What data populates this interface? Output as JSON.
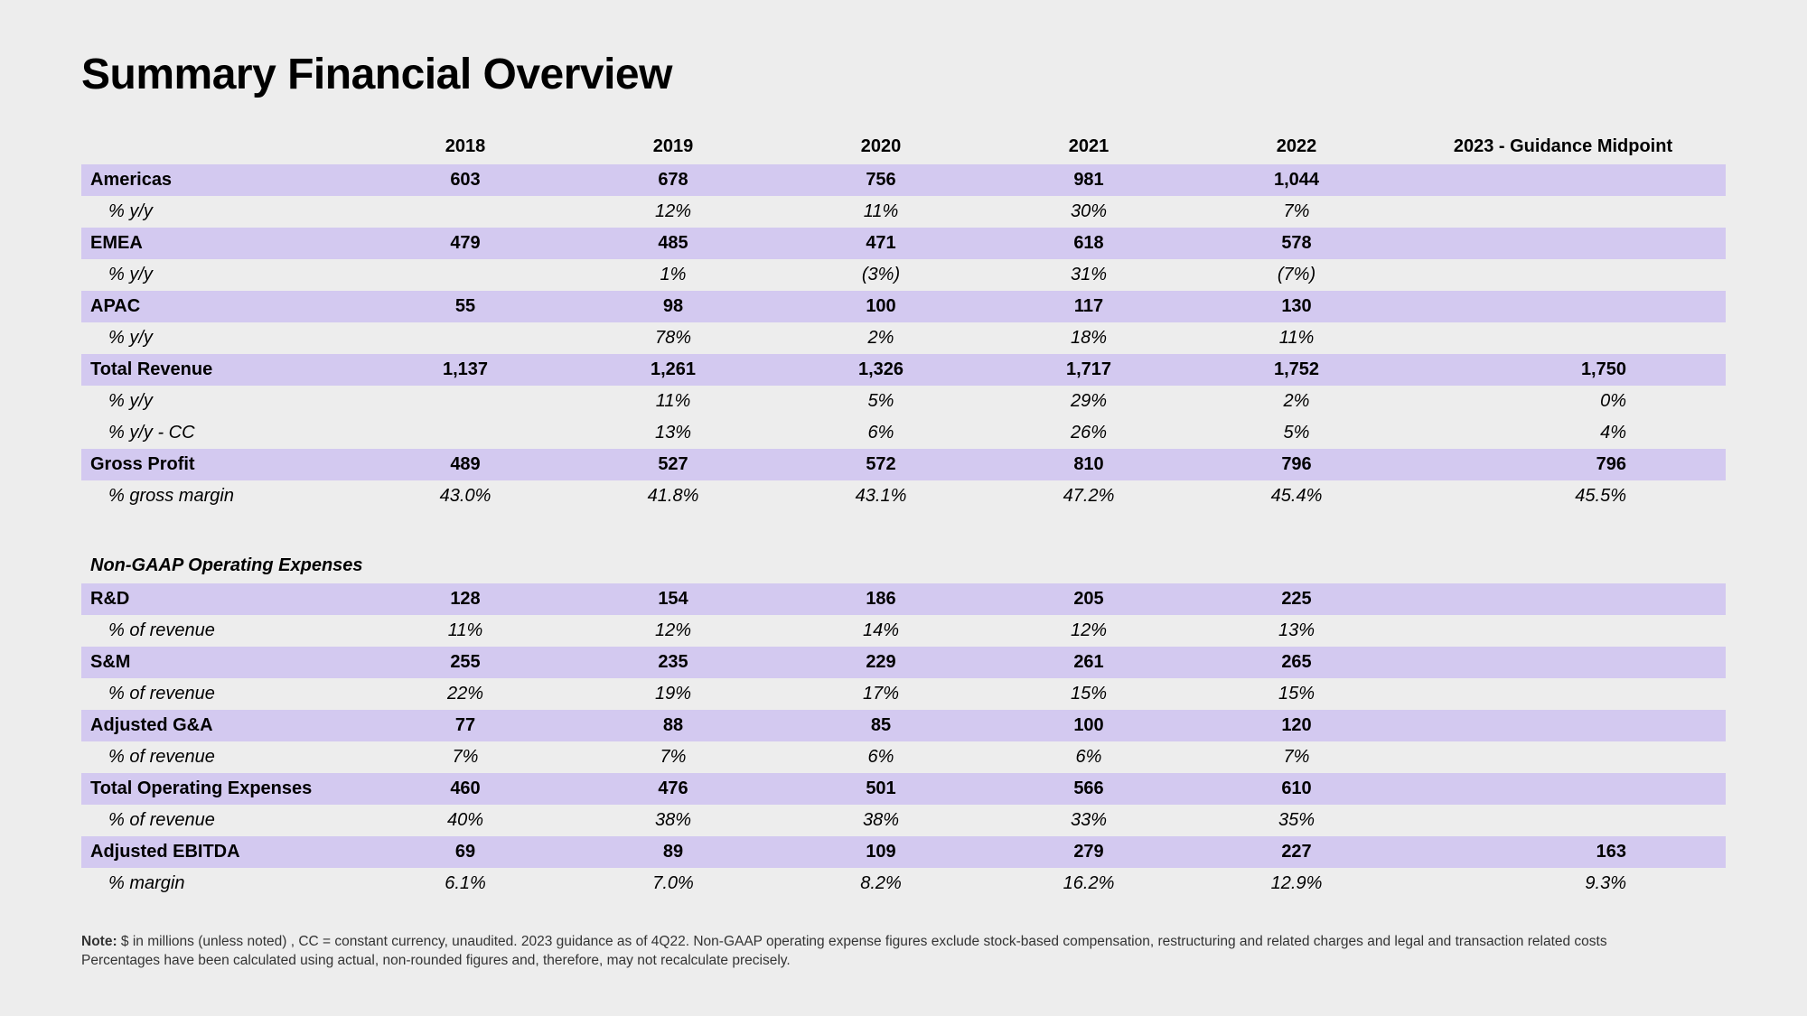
{
  "title": "Summary Financial Overview",
  "columns": [
    "2018",
    "2019",
    "2020",
    "2021",
    "2022",
    "2023 - Guidance Midpoint"
  ],
  "colors": {
    "page_bg": "#ededed",
    "row_main_bg": "#d3c9f0",
    "row_sub_bg": "#ededed",
    "text": "#000000"
  },
  "typography": {
    "title_fontsize": 48,
    "cell_fontsize": 20,
    "footnote_fontsize": 15.5
  },
  "blocks": [
    {
      "type": "data",
      "rows": [
        {
          "kind": "main",
          "label": "Americas",
          "values": [
            "603",
            "678",
            "756",
            "981",
            "1,044",
            ""
          ]
        },
        {
          "kind": "sub",
          "label": "% y/y",
          "values": [
            "",
            "12%",
            "11%",
            "30%",
            "7%",
            ""
          ]
        },
        {
          "kind": "main",
          "label": "EMEA",
          "values": [
            "479",
            "485",
            "471",
            "618",
            "578",
            ""
          ]
        },
        {
          "kind": "sub",
          "label": "% y/y",
          "values": [
            "",
            "1%",
            "(3%)",
            "31%",
            "(7%)",
            ""
          ]
        },
        {
          "kind": "main",
          "label": "APAC",
          "values": [
            "55",
            "98",
            "100",
            "117",
            "130",
            ""
          ]
        },
        {
          "kind": "sub",
          "label": "% y/y",
          "values": [
            "",
            "78%",
            "2%",
            "18%",
            "11%",
            ""
          ]
        },
        {
          "kind": "main",
          "label": "Total Revenue",
          "values": [
            "1,137",
            "1,261",
            "1,326",
            "1,717",
            "1,752",
            "1,750"
          ]
        },
        {
          "kind": "sub",
          "label": "% y/y",
          "values": [
            "",
            "11%",
            "5%",
            "29%",
            "2%",
            "0%"
          ]
        },
        {
          "kind": "sub",
          "label": "% y/y - CC",
          "values": [
            "",
            "13%",
            "6%",
            "26%",
            "5%",
            "4%"
          ]
        },
        {
          "kind": "main",
          "label": "Gross Profit",
          "values": [
            "489",
            "527",
            "572",
            "810",
            "796",
            "796"
          ]
        },
        {
          "kind": "sub",
          "label": "% gross margin",
          "values": [
            "43.0%",
            "41.8%",
            "43.1%",
            "47.2%",
            "45.4%",
            "45.5%"
          ]
        }
      ]
    },
    {
      "type": "section",
      "heading": "Non-GAAP Operating Expenses"
    },
    {
      "type": "data",
      "rows": [
        {
          "kind": "main",
          "label": "R&D",
          "values": [
            "128",
            "154",
            "186",
            "205",
            "225",
            ""
          ]
        },
        {
          "kind": "sub",
          "label": "% of revenue",
          "values": [
            "11%",
            "12%",
            "14%",
            "12%",
            "13%",
            ""
          ]
        },
        {
          "kind": "main",
          "label": "S&M",
          "values": [
            "255",
            "235",
            "229",
            "261",
            "265",
            ""
          ]
        },
        {
          "kind": "sub",
          "label": "% of revenue",
          "values": [
            "22%",
            "19%",
            "17%",
            "15%",
            "15%",
            ""
          ]
        },
        {
          "kind": "main",
          "label": "Adjusted G&A",
          "values": [
            "77",
            "88",
            "85",
            "100",
            "120",
            ""
          ]
        },
        {
          "kind": "sub",
          "label": "% of revenue",
          "values": [
            "7%",
            "7%",
            "6%",
            "6%",
            "7%",
            ""
          ]
        },
        {
          "kind": "main",
          "label": "Total Operating Expenses",
          "values": [
            "460",
            "476",
            "501",
            "566",
            "610",
            ""
          ]
        },
        {
          "kind": "sub",
          "label": "% of revenue",
          "values": [
            "40%",
            "38%",
            "38%",
            "33%",
            "35%",
            ""
          ]
        },
        {
          "kind": "main",
          "label": "Adjusted EBITDA",
          "values": [
            "69",
            "89",
            "109",
            "279",
            "227",
            "163"
          ]
        },
        {
          "kind": "sub",
          "label": "% margin",
          "values": [
            "6.1%",
            "7.0%",
            "8.2%",
            "16.2%",
            "12.9%",
            "9.3%"
          ]
        }
      ]
    }
  ],
  "footnote": {
    "lead": "Note:",
    "line1": "  $ in millions (unless noted) , CC = constant currency, unaudited. 2023 guidance as of 4Q22. Non-GAAP operating expense figures exclude stock-based compensation, restructuring and related charges and legal and transaction related costs",
    "line2": "Percentages have been calculated using actual, non-rounded figures and, therefore, may not recalculate precisely."
  }
}
